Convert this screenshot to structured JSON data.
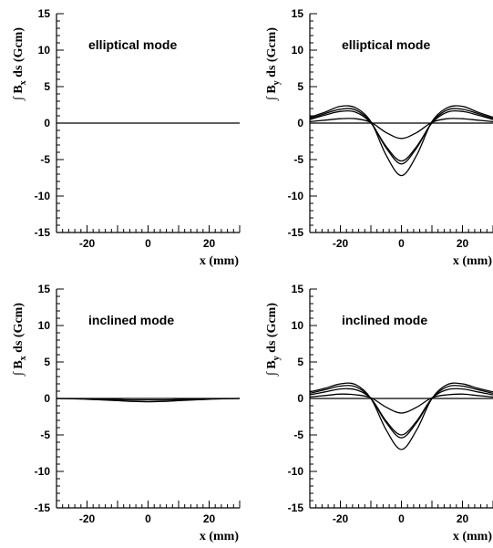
{
  "chart_data": [
    {
      "type": "line",
      "annotation": "elliptical mode",
      "ylabel": "∫ Bx ds (Gcm)",
      "ylabel_main": "B",
      "ylabel_sub": "x",
      "ylabel_rest": "ds (Gcm)",
      "xlabel": "x (mm)",
      "xlim": [
        -30,
        30
      ],
      "ylim": [
        -15,
        15
      ],
      "xticks": [
        -20,
        0,
        20
      ],
      "yticks": [
        15,
        10,
        5,
        0,
        -5,
        -10,
        -15
      ],
      "x": [
        -30,
        -25,
        -20,
        -15,
        -10,
        -5,
        0,
        5,
        10,
        15,
        20,
        25,
        30
      ],
      "series": [
        {
          "values": [
            0,
            0,
            0,
            0,
            0,
            0,
            0,
            0,
            0,
            0,
            0,
            0,
            0
          ]
        }
      ]
    },
    {
      "type": "line",
      "annotation": "elliptical mode",
      "ylabel": "∫ By ds (Gcm)",
      "ylabel_main": "B",
      "ylabel_sub": "y",
      "ylabel_rest": "ds (Gcm)",
      "xlabel": "x (mm)",
      "xlim": [
        -30,
        30
      ],
      "ylim": [
        -15,
        15
      ],
      "xticks": [
        -20,
        0,
        20
      ],
      "yticks": [
        15,
        10,
        5,
        0,
        -5,
        -10,
        -15
      ],
      "x": [
        -30,
        -25,
        -20,
        -15,
        -10,
        -5,
        0,
        5,
        10,
        15,
        20,
        25,
        30
      ],
      "series": [
        {
          "values": [
            0.8,
            1.5,
            2.3,
            2.1,
            0.2,
            -4.4,
            -7.2,
            -4.4,
            0.2,
            2.1,
            2.3,
            1.5,
            0.8
          ]
        },
        {
          "values": [
            0.6,
            1.3,
            1.9,
            1.8,
            0.1,
            -3.4,
            -5.6,
            -3.4,
            0.1,
            1.8,
            1.9,
            1.3,
            0.6
          ]
        },
        {
          "values": [
            0.5,
            1.1,
            1.6,
            1.5,
            0.0,
            -3.2,
            -5.2,
            -3.2,
            0.0,
            1.5,
            1.6,
            1.1,
            0.5
          ]
        },
        {
          "values": [
            0.2,
            0.4,
            0.6,
            0.6,
            0.1,
            -1.3,
            -2.1,
            -1.3,
            0.1,
            0.6,
            0.6,
            0.4,
            0.2
          ]
        },
        {
          "values": [
            0,
            0,
            0,
            0,
            0,
            0,
            0,
            0,
            0,
            0,
            0,
            0,
            0
          ]
        }
      ]
    },
    {
      "type": "line",
      "annotation": "inclined mode",
      "ylabel": "∫ Bx ds (Gcm)",
      "ylabel_main": "B",
      "ylabel_sub": "x",
      "ylabel_rest": "ds (Gcm)",
      "xlabel": "x (mm)",
      "xlim": [
        -30,
        30
      ],
      "ylim": [
        -15,
        15
      ],
      "xticks": [
        -20,
        0,
        20
      ],
      "yticks": [
        15,
        10,
        5,
        0,
        -5,
        -10,
        -15
      ],
      "x": [
        -30,
        -25,
        -20,
        -15,
        -10,
        -5,
        0,
        5,
        10,
        15,
        20,
        25,
        30
      ],
      "series": [
        {
          "values": [
            0,
            -0.05,
            -0.1,
            -0.2,
            -0.3,
            -0.4,
            -0.45,
            -0.4,
            -0.3,
            -0.2,
            -0.1,
            -0.05,
            0
          ]
        },
        {
          "values": [
            0,
            -0.03,
            -0.05,
            -0.1,
            -0.15,
            -0.2,
            -0.2,
            -0.2,
            -0.15,
            -0.1,
            -0.05,
            -0.03,
            0
          ]
        },
        {
          "values": [
            0,
            0,
            0,
            0,
            0,
            0,
            0,
            0,
            0,
            0,
            0,
            0,
            0
          ]
        }
      ]
    },
    {
      "type": "line",
      "annotation": "inclined mode",
      "ylabel": "∫ By ds (Gcm)",
      "ylabel_main": "B",
      "ylabel_sub": "y",
      "ylabel_rest": "ds (Gcm)",
      "xlabel": "x (mm)",
      "xlim": [
        -30,
        30
      ],
      "ylim": [
        -15,
        15
      ],
      "xticks": [
        -20,
        0,
        20
      ],
      "yticks": [
        15,
        10,
        5,
        0,
        -5,
        -10,
        -15
      ],
      "x": [
        -30,
        -25,
        -20,
        -15,
        -10,
        -5,
        0,
        5,
        10,
        15,
        20,
        25,
        30
      ],
      "series": [
        {
          "values": [
            0.9,
            1.4,
            2.0,
            1.9,
            0.0,
            -4.3,
            -7.0,
            -4.3,
            0.0,
            1.9,
            2.0,
            1.4,
            0.9
          ]
        },
        {
          "values": [
            0.7,
            1.2,
            1.7,
            1.6,
            0.0,
            -3.3,
            -5.4,
            -3.3,
            0.0,
            1.6,
            1.7,
            1.2,
            0.7
          ]
        },
        {
          "values": [
            0.5,
            0.9,
            1.3,
            1.2,
            0.0,
            -3.1,
            -5.0,
            -3.1,
            0.0,
            1.2,
            1.3,
            0.9,
            0.5
          ]
        },
        {
          "values": [
            0.2,
            0.4,
            0.6,
            0.5,
            0.1,
            -1.2,
            -2.0,
            -1.2,
            0.1,
            0.5,
            0.6,
            0.4,
            0.2
          ]
        },
        {
          "values": [
            0,
            0,
            0,
            0,
            0,
            0,
            0,
            0,
            0,
            0,
            0,
            0,
            0
          ]
        }
      ]
    }
  ]
}
